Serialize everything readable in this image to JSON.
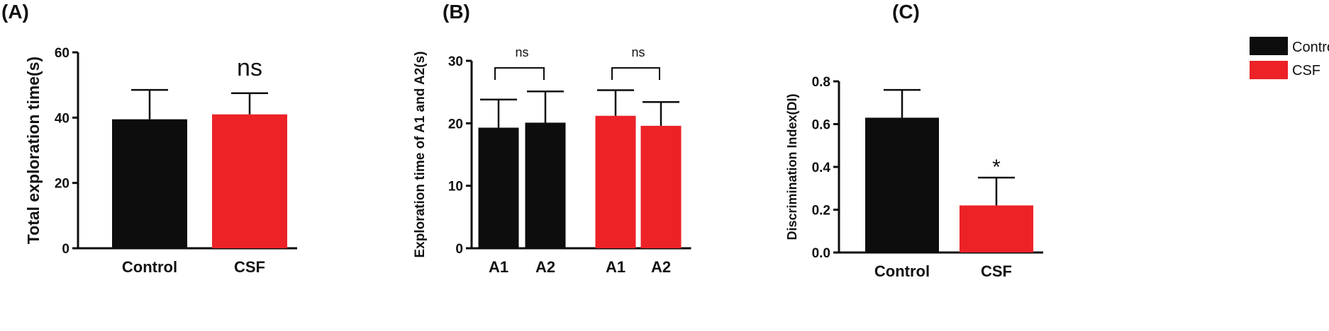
{
  "colors": {
    "control": "#0d0d0d",
    "csf": "#ec2227",
    "axis": "#111111"
  },
  "legend": [
    {
      "label": "Control",
      "color": "#0d0d0d"
    },
    {
      "label": "CSF",
      "color": "#ec2227"
    }
  ],
  "chart_data": [
    {
      "type": "bar",
      "panel_label": "(A)",
      "ylabel": "Total exploration time(s)",
      "ylim": [
        0,
        60
      ],
      "yticks": [
        "0",
        "20",
        "40",
        "60"
      ],
      "categories": [
        "Control",
        "CSF"
      ],
      "values": [
        39.5,
        41.0
      ],
      "errors": [
        9.0,
        6.5
      ],
      "colors": [
        "control",
        "csf"
      ],
      "annotations": [
        {
          "text": "ns",
          "over": [
            0,
            1
          ]
        }
      ]
    },
    {
      "type": "bar",
      "panel_label": "(B)",
      "ylabel": "Exploration time of A1 and A2(s)",
      "ylim": [
        0,
        30
      ],
      "yticks": [
        "0",
        "10",
        "20",
        "30"
      ],
      "categories": [
        "A1",
        "A2",
        "A1",
        "A2"
      ],
      "values": [
        19.3,
        20.1,
        21.2,
        19.6
      ],
      "errors": [
        4.5,
        5.0,
        4.1,
        3.8
      ],
      "colors": [
        "control",
        "control",
        "csf",
        "csf"
      ],
      "annotations": [
        {
          "text": "ns",
          "bracket": [
            0,
            1
          ]
        },
        {
          "text": "ns",
          "bracket": [
            2,
            3
          ]
        }
      ]
    },
    {
      "type": "bar",
      "panel_label": "(C)",
      "ylabel": "Discrimination Index(DI)",
      "ylim": [
        0,
        0.8
      ],
      "yticks": [
        "0.0",
        "0.2",
        "0.4",
        "0.6",
        "0.8"
      ],
      "categories": [
        "Control",
        "CSF"
      ],
      "values": [
        0.63,
        0.22
      ],
      "errors": [
        0.13,
        0.13
      ],
      "colors": [
        "control",
        "csf"
      ],
      "annotations": [
        {
          "text": "*",
          "over": [
            1
          ]
        }
      ]
    }
  ]
}
